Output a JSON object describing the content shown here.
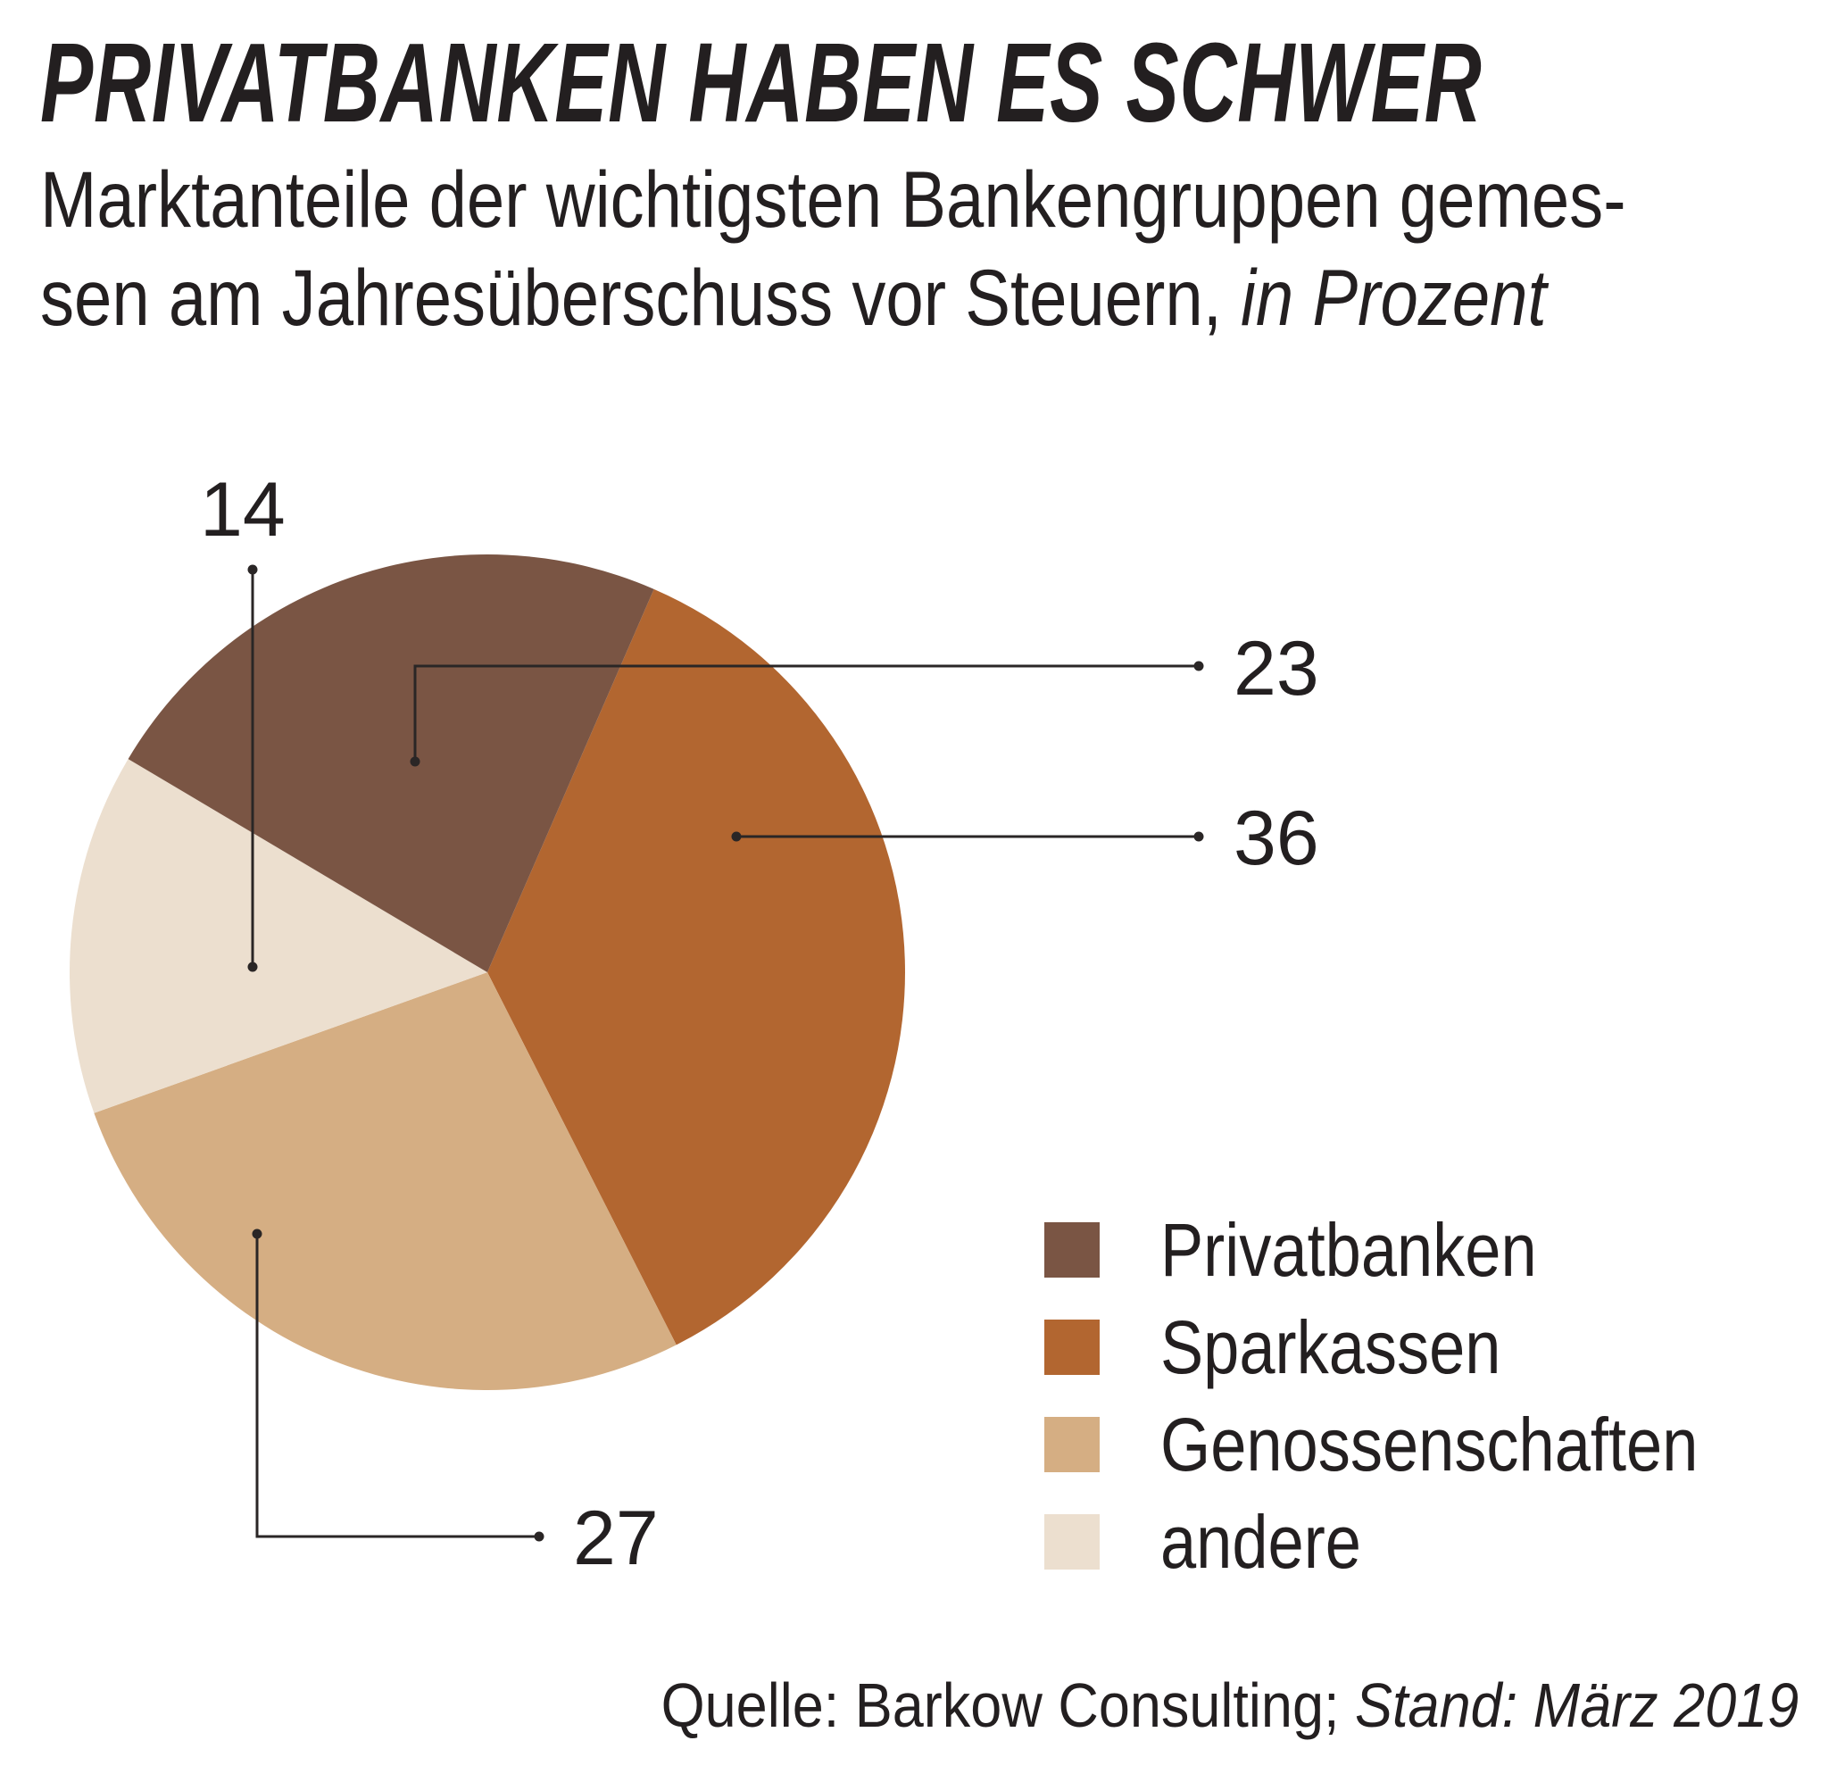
{
  "header": {
    "title": "PRIVATBANKEN HABEN ES SCHWER",
    "subtitle_line1": "Marktanteile der wichtigsten Bankengruppen gemes-",
    "subtitle_line2": "sen am Jahresüberschuss vor Steuern,",
    "subtitle_unit": "in Prozent"
  },
  "footer": {
    "source_prefix": "Quelle: Barkow Consulting;",
    "source_date": "Stand: März 2019"
  },
  "chart_data": {
    "type": "pie",
    "title": "PRIVATBANKEN HABEN ES SCHWER",
    "subtitle": "Marktanteile der wichtigsten Bankengruppen gemessen am Jahresüberschuss vor Steuern, in Prozent",
    "unit": "Prozent",
    "start_angle_deg": 23.5,
    "direction": "clockwise",
    "slices": [
      {
        "key": "sparkassen",
        "label": "Sparkassen",
        "value": 36,
        "color": "#b26630"
      },
      {
        "key": "genossenschaften",
        "label": "Genossenschaften",
        "value": 27,
        "color": "#d5ae83"
      },
      {
        "key": "andere",
        "label": "andere",
        "value": 14,
        "color": "#ecdfcf"
      },
      {
        "key": "privatbanken",
        "label": "Privatbanken",
        "value": 23,
        "color": "#7a5544"
      }
    ],
    "legend": {
      "placement": "bottom-right",
      "entries": [
        {
          "label": "Privatbanken",
          "color": "#7a5544"
        },
        {
          "label": "Sparkassen",
          "color": "#b26630"
        },
        {
          "label": "Genossenschaften",
          "color": "#d5ae83"
        },
        {
          "label": "andere",
          "color": "#ecdfcf"
        }
      ]
    },
    "data_labels": {
      "privatbanken": "23",
      "sparkassen": "36",
      "genossenschaften": "27",
      "andere": "14"
    }
  }
}
